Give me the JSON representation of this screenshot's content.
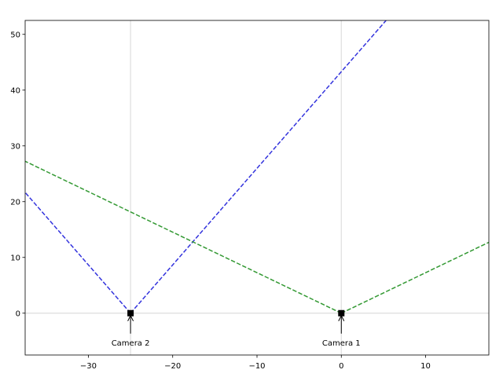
{
  "chart_data": {
    "type": "line",
    "title": "",
    "xlabel": "",
    "ylabel": "",
    "xlim": [
      -37.5,
      17.5
    ],
    "ylim": [
      -7.5,
      52.5
    ],
    "xticks": [
      -30,
      -20,
      -10,
      0,
      10
    ],
    "yticks": [
      0,
      10,
      20,
      30,
      40,
      50
    ],
    "reference_lines": [
      {
        "name": "vertical-at-camera-2",
        "orientation": "vertical",
        "value": -25,
        "color": "#dddddd"
      },
      {
        "name": "vertical-at-camera-1",
        "orientation": "vertical",
        "value": 0,
        "color": "#dddddd"
      },
      {
        "name": "horizontal-at-zero",
        "orientation": "horizontal",
        "value": 0,
        "color": "#dddddd"
      }
    ],
    "series": [
      {
        "id": "camera-2-fov-left",
        "color": "#3333dd",
        "dash": "dashed",
        "points": [
          [
            -25,
            0
          ],
          [
            -37.5,
            21.65
          ]
        ]
      },
      {
        "id": "camera-2-fov-right",
        "color": "#3333dd",
        "dash": "dashed",
        "points": [
          [
            -25,
            0
          ],
          [
            5.31,
            52.5
          ]
        ]
      },
      {
        "id": "camera-1-fov-left",
        "color": "#339933",
        "dash": "dashed",
        "points": [
          [
            0,
            0
          ],
          [
            -37.5,
            27.24
          ]
        ]
      },
      {
        "id": "camera-1-fov-right",
        "color": "#339933",
        "dash": "dashed",
        "points": [
          [
            0,
            0
          ],
          [
            17.5,
            12.71
          ]
        ]
      }
    ],
    "markers": [
      {
        "id": "camera-2",
        "x": -25,
        "y": 0,
        "color": "#000000"
      },
      {
        "id": "camera-1",
        "x": 0,
        "y": 0,
        "color": "#000000"
      }
    ],
    "annotations": [
      {
        "id": "camera-2-label",
        "text": "Camera 2",
        "x": -25,
        "y": 0
      },
      {
        "id": "camera-1-label",
        "text": "Camera 1",
        "x": 0,
        "y": 0
      }
    ]
  }
}
